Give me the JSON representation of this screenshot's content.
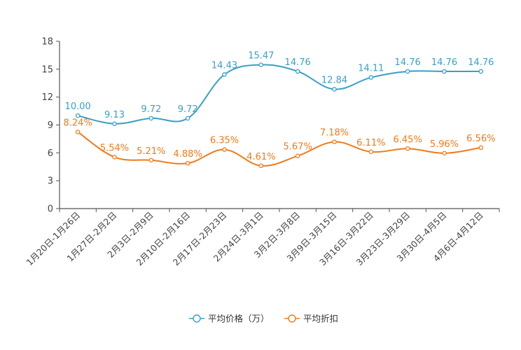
{
  "chart_data": {
    "type": "line",
    "title": "",
    "xlabel": "",
    "ylabel": "",
    "ylim": [
      0,
      18
    ],
    "yticks": [
      "0",
      "3",
      "6",
      "9",
      "12",
      "15",
      "18"
    ],
    "categories": [
      "1月20日-1月26日",
      "1月27日-2月2日",
      "2月3日-2月9日",
      "2月10日-2月16日",
      "2月17日-2月23日",
      "2月24日-3月1日",
      "3月2日-3月8日",
      "3月9日-3月15日",
      "3月16日-3月22日",
      "3月23日-3月29日",
      "3月30日-4月5日",
      "4月6日-4月12日"
    ],
    "series": [
      {
        "name": "平均价格（万）",
        "color": "#3a9fc9",
        "values": [
          10.0,
          9.13,
          9.72,
          9.72,
          14.43,
          15.47,
          14.76,
          12.84,
          14.11,
          14.76,
          14.76,
          14.76
        ],
        "labels": [
          "10.00",
          "9.13",
          "9.72",
          "9.72",
          "14.43",
          "15.47",
          "14.76",
          "12.84",
          "14.11",
          "14.76",
          "14.76",
          "14.76"
        ]
      },
      {
        "name": "平均折扣",
        "color": "#f07a1a",
        "values": [
          8.24,
          5.54,
          5.21,
          4.88,
          6.35,
          4.61,
          5.67,
          7.18,
          6.11,
          6.45,
          5.96,
          6.56
        ],
        "labels": [
          "8.24%",
          "5.54%",
          "5.21%",
          "4.88%",
          "6.35%",
          "4.61%",
          "5.67%",
          "7.18%",
          "6.11%",
          "6.45%",
          "5.96%",
          "6.56%"
        ]
      }
    ],
    "legend_position": "bottom-center",
    "grid": false
  }
}
